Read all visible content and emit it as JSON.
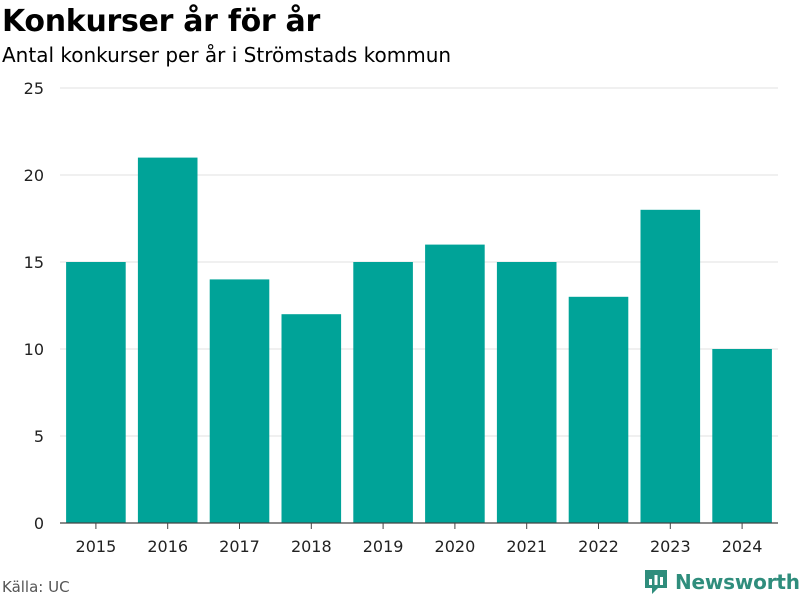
{
  "header": {
    "title": "Konkurser år för år",
    "subtitle": "Antal konkurser per år i Strömstads kommun"
  },
  "footer": {
    "source": "Källa: UC",
    "brand": "Newsworthy",
    "brand_icon": "newsworthy-logo-icon"
  },
  "colors": {
    "bar": "#00a398",
    "grid": "#e2e2e2",
    "axis": "#444444",
    "brand": "#2f8d7c"
  },
  "chart_data": {
    "type": "bar",
    "categories": [
      "2015",
      "2016",
      "2017",
      "2018",
      "2019",
      "2020",
      "2021",
      "2022",
      "2023",
      "2024"
    ],
    "values": [
      15,
      21,
      14,
      12,
      15,
      16,
      15,
      13,
      18,
      10
    ],
    "ylim": [
      0,
      25
    ],
    "yticks": [
      0,
      5,
      10,
      15,
      20,
      25
    ],
    "grid": true,
    "legend": "none"
  }
}
